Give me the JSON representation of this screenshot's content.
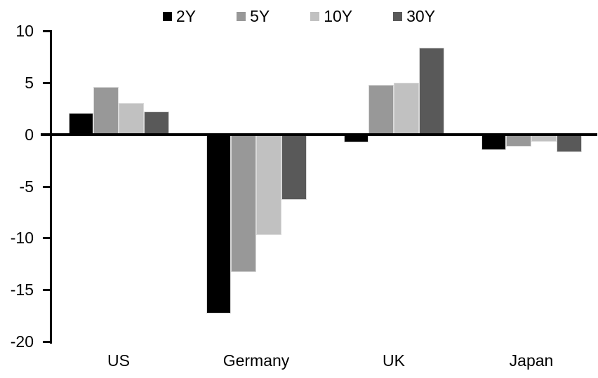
{
  "chart_data": {
    "type": "bar",
    "categories": [
      "US",
      "Germany",
      "UK",
      "Japan"
    ],
    "series": [
      {
        "name": "2Y",
        "color": "#000000",
        "values": [
          2.1,
          -17.3,
          -0.8,
          -1.5
        ]
      },
      {
        "name": "5Y",
        "color": "#989898",
        "values": [
          4.6,
          -13.3,
          4.8,
          -1.2
        ]
      },
      {
        "name": "10Y",
        "color": "#c1c1c1",
        "values": [
          3.0,
          -9.7,
          5.0,
          -0.7
        ]
      },
      {
        "name": "30Y",
        "color": "#595959",
        "values": [
          2.2,
          -6.3,
          8.4,
          -1.7
        ]
      }
    ],
    "ylim": [
      -20,
      10
    ],
    "yticks": [
      10,
      5,
      0,
      -5,
      -10,
      -15,
      -20
    ],
    "grid": false,
    "legend_position": "top",
    "axis_color": "#000000",
    "background_color": "#ffffff"
  }
}
